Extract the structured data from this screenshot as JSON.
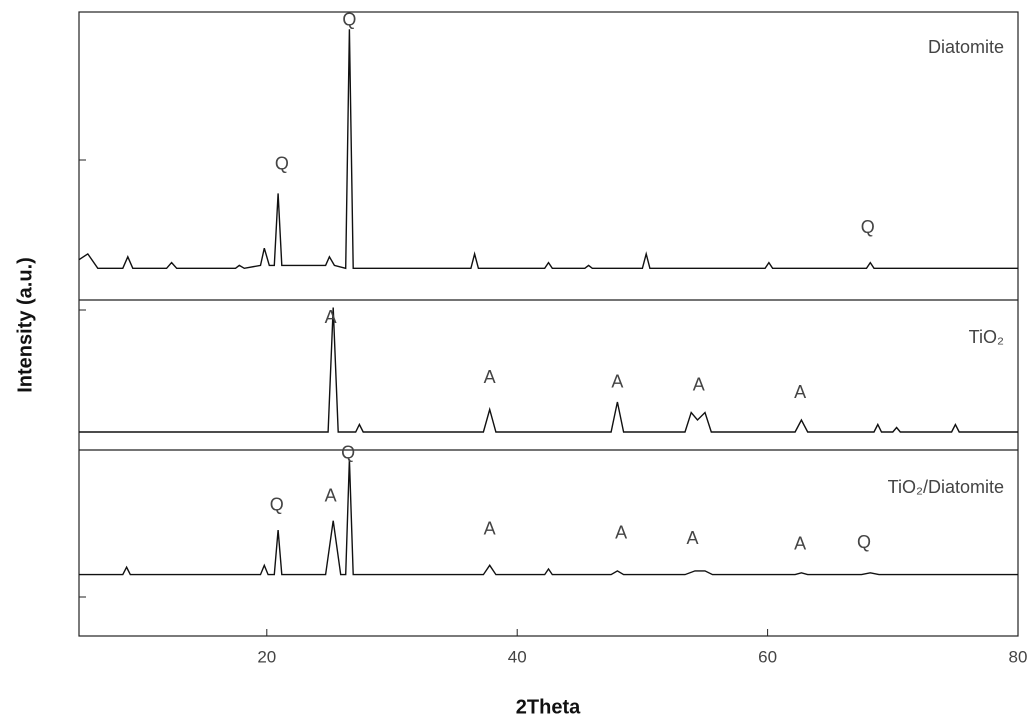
{
  "chart_data": {
    "type": "line",
    "xlabel": "2Theta",
    "ylabel": "Intensity (a.u.)",
    "xlim": [
      5,
      80
    ],
    "xticks": [
      20,
      40,
      60,
      80
    ],
    "color": "#111111",
    "panels": [
      {
        "name": "Diatomite",
        "ylim": [
          0,
          100
        ],
        "x": [
          5,
          5.7,
          6.5,
          8.5,
          8.9,
          9.3,
          12,
          12.4,
          12.8,
          17.5,
          17.8,
          18.2,
          19.5,
          19.8,
          20.2,
          20.6,
          20.9,
          21.2,
          24.7,
          25,
          25.4,
          26.3,
          26.6,
          26.9,
          30,
          36.3,
          36.6,
          36.9,
          42.2,
          42.5,
          42.8,
          45.4,
          45.7,
          46,
          50,
          50.3,
          50.6,
          59.8,
          60.1,
          60.4,
          67.9,
          68.2,
          68.5,
          80
        ],
        "values": [
          14,
          16,
          11,
          11,
          15,
          11,
          11,
          13,
          11,
          11,
          12,
          11,
          12,
          18,
          12,
          12,
          37,
          12,
          12,
          15,
          12,
          11,
          94,
          11,
          11,
          11,
          16,
          11,
          11,
          13,
          11,
          11,
          12,
          11,
          11,
          16,
          11,
          11,
          13,
          11,
          11,
          13,
          11,
          11
        ],
        "annotations": [
          {
            "text": "Q",
            "x": 21.2,
            "y": 47
          },
          {
            "text": "Q",
            "x": 26.6,
            "y": 97
          },
          {
            "text": "Q",
            "x": 68,
            "y": 25
          }
        ]
      },
      {
        "name": "TiO₂",
        "ylim": [
          0,
          100
        ],
        "x": [
          5,
          24.9,
          25.3,
          25.7,
          27.1,
          27.4,
          27.7,
          37.3,
          37.8,
          38.3,
          47.5,
          48,
          48.5,
          53.4,
          53.9,
          54.4,
          55,
          55.5,
          62.2,
          62.7,
          63.2,
          68.5,
          68.8,
          69.1,
          70,
          70.3,
          70.6,
          74.7,
          75,
          75.3,
          80
        ],
        "values": [
          12,
          12,
          95,
          12,
          12,
          17,
          12,
          12,
          27,
          12,
          12,
          32,
          12,
          12,
          25,
          20,
          25,
          12,
          12,
          20,
          12,
          12,
          17,
          12,
          12,
          15,
          12,
          12,
          17,
          12,
          12
        ],
        "annotations": [
          {
            "text": "A",
            "x": 25.1,
            "y": 88
          },
          {
            "text": "A",
            "x": 37.8,
            "y": 48
          },
          {
            "text": "A",
            "x": 48,
            "y": 45
          },
          {
            "text": "A",
            "x": 54.5,
            "y": 43
          },
          {
            "text": "A",
            "x": 62.6,
            "y": 38
          }
        ]
      },
      {
        "name": "TiO₂/Diatomite",
        "ylim": [
          0,
          100
        ],
        "x": [
          5,
          8.5,
          8.8,
          9.1,
          19.5,
          19.8,
          20.1,
          20.6,
          20.9,
          21.2,
          24.7,
          25.3,
          25.9,
          26.3,
          26.6,
          26.9,
          37.3,
          37.8,
          38.3,
          42.2,
          42.5,
          42.8,
          47.5,
          48,
          48.5,
          53.4,
          54.2,
          55,
          55.6,
          62.2,
          62.7,
          63.2,
          67.5,
          68.2,
          68.9,
          80
        ],
        "values": [
          33,
          33,
          37,
          33,
          33,
          38,
          33,
          33,
          57,
          33,
          33,
          62,
          33,
          33,
          95,
          33,
          33,
          38,
          33,
          33,
          36,
          33,
          33,
          35,
          33,
          33,
          35,
          35,
          33,
          33,
          34,
          33,
          33,
          34,
          33,
          33
        ],
        "annotations": [
          {
            "text": "Q",
            "x": 20.8,
            "y": 70
          },
          {
            "text": "A",
            "x": 25.1,
            "y": 75
          },
          {
            "text": "Q",
            "x": 26.5,
            "y": 98
          },
          {
            "text": "A",
            "x": 37.8,
            "y": 57
          },
          {
            "text": "A",
            "x": 48.3,
            "y": 55
          },
          {
            "text": "A",
            "x": 54,
            "y": 52
          },
          {
            "text": "A",
            "x": 62.6,
            "y": 49
          },
          {
            "text": "Q",
            "x": 67.7,
            "y": 50
          }
        ]
      }
    ]
  }
}
